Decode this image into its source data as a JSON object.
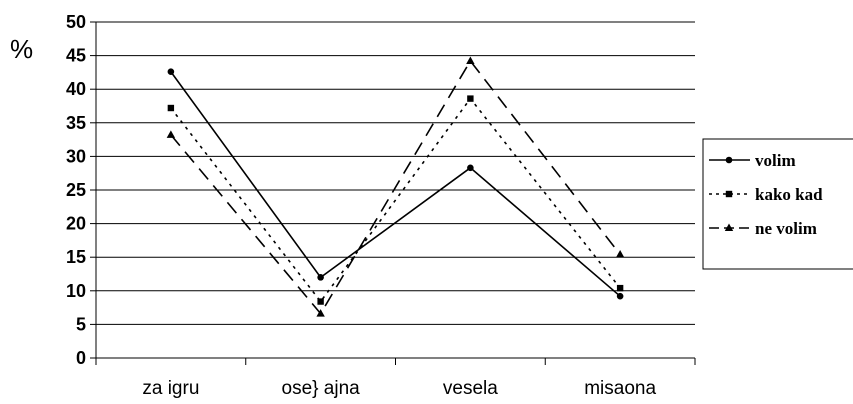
{
  "chart_data": {
    "type": "line",
    "title": "",
    "xlabel": "",
    "ylabel": "%",
    "categories": [
      "za igru",
      "osećajna",
      "vesela",
      "misaona"
    ],
    "category_labels_as_printed": [
      "za igru",
      "ose} ajna",
      "vesela",
      "misaona"
    ],
    "ylim": [
      0,
      50
    ],
    "yticks": [
      0,
      5,
      10,
      15,
      20,
      25,
      30,
      35,
      40,
      45,
      50
    ],
    "grid": true,
    "legend_position": "right",
    "series": [
      {
        "name": "volim",
        "values": [
          42.6,
          12.0,
          28.3,
          9.2
        ],
        "style": "solid",
        "marker": "circle",
        "color": "#000000"
      },
      {
        "name": "kako kad",
        "values": [
          37.2,
          8.4,
          38.6,
          10.4
        ],
        "style": "dotted",
        "marker": "square",
        "color": "#000000"
      },
      {
        "name": "ne volim",
        "values": [
          33.2,
          6.6,
          44.2,
          15.4
        ],
        "style": "dashed",
        "marker": "triangle",
        "color": "#000000"
      }
    ]
  }
}
